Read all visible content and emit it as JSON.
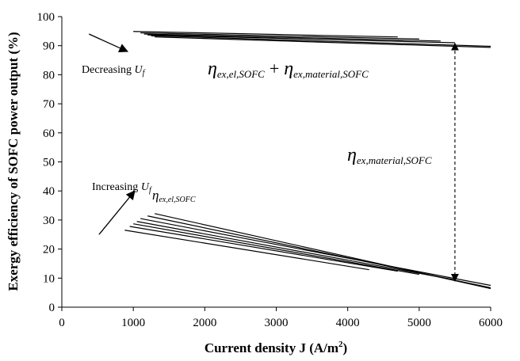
{
  "chart_data": {
    "type": "line",
    "title": "",
    "xlabel": "Current density J (A/m",
    "xlabel_sup": "2",
    "xlabel_tail": ")",
    "ylabel": "Exergy efficiency of SOFC power output (%)",
    "xlim": [
      0,
      6000
    ],
    "ylim": [
      0,
      100
    ],
    "x_ticks": [
      "0",
      "1000",
      "2000",
      "3000",
      "4000",
      "5000",
      "6000"
    ],
    "y_ticks": [
      "0",
      "10",
      "20",
      "30",
      "40",
      "50",
      "60",
      "70",
      "80",
      "90",
      "100"
    ],
    "grid": false,
    "legend": "none",
    "series_groups": [
      {
        "group": "upper",
        "series": [
          {
            "x": [
              1000,
              4700
            ],
            "y": [
              94.9,
              93.0
            ]
          },
          {
            "x": [
              1100,
              5000
            ],
            "y": [
              94.4,
              92.3
            ]
          },
          {
            "x": [
              1150,
              5300
            ],
            "y": [
              94.0,
              91.6
            ]
          },
          {
            "x": [
              1200,
              5500
            ],
            "y": [
              93.7,
              91.0
            ]
          },
          {
            "x": [
              1250,
              6000
            ],
            "y": [
              93.4,
              89.8
            ]
          },
          {
            "x": [
              1300,
              6000
            ],
            "y": [
              93.0,
              89.4
            ]
          }
        ]
      },
      {
        "group": "lower",
        "series": [
          {
            "x": [
              880,
              4300
            ],
            "y": [
              26.5,
              12.9
            ]
          },
          {
            "x": [
              950,
              4700
            ],
            "y": [
              27.8,
              12.4
            ]
          },
          {
            "x": [
              1000,
              5000
            ],
            "y": [
              28.7,
              11.3
            ]
          },
          {
            "x": [
              1050,
              5500
            ],
            "y": [
              29.5,
              9.4
            ]
          },
          {
            "x": [
              1100,
              6000
            ],
            "y": [
              30.5,
              7.5
            ]
          },
          {
            "x": [
              1200,
              6000
            ],
            "y": [
              31.4,
              6.7
            ]
          },
          {
            "x": [
              1300,
              6000
            ],
            "y": [
              32.2,
              6.4
            ]
          }
        ]
      }
    ],
    "annotations": {
      "decreasing_prefix": "Decreasing ",
      "increasing_prefix": "Increasing ",
      "uf_symbol": "U",
      "uf_sub": "f",
      "eta_symbol": "η",
      "sub_el": "ex,el,SOFC",
      "sub_material": "ex,material,SOFC",
      "plus": "+"
    },
    "arrow_annotations": [
      {
        "from": [
          380,
          94
        ],
        "to": [
          920,
          88
        ]
      },
      {
        "from": [
          520,
          25
        ],
        "to": [
          1020,
          40
        ]
      }
    ],
    "double_arrow": {
      "x": 5500,
      "y_from": 9.0,
      "y_to": 90.8
    }
  }
}
